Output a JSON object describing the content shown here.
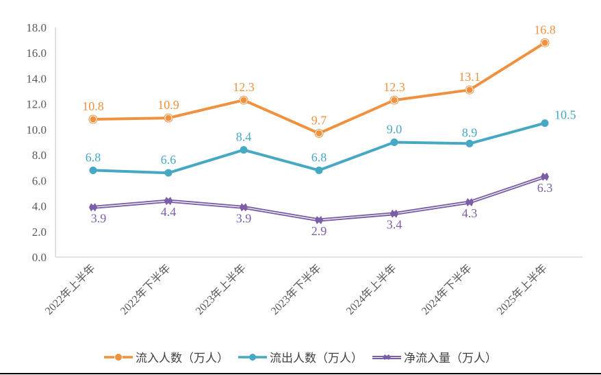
{
  "chart_data": {
    "type": "line",
    "title": "",
    "xlabel": "",
    "ylabel": "",
    "ylim": [
      0,
      18
    ],
    "yticks": [
      "0.0",
      "2.0",
      "4.0",
      "6.0",
      "8.0",
      "10.0",
      "12.0",
      "14.0",
      "16.0",
      "18.0"
    ],
    "ytick_values": [
      0,
      2,
      4,
      6,
      8,
      10,
      12,
      14,
      16,
      18
    ],
    "categories": [
      "2022年上半年",
      "2022年下半年",
      "2023年上半年",
      "2023年下半年",
      "2024年上半年",
      "2024年下半年",
      "2025年上半年"
    ],
    "grid": false,
    "legend_position": "bottom",
    "series": [
      {
        "name": "流入人数（万人）",
        "color": "#F0913F",
        "marker": "double-circle",
        "values": [
          10.8,
          10.9,
          12.3,
          9.7,
          12.3,
          13.1,
          16.8
        ],
        "labels": [
          "10.8",
          "10.9",
          "12.3",
          "9.7",
          "12.3",
          "13.1",
          "16.8"
        ]
      },
      {
        "name": "流出人数（万人）",
        "color": "#47A8C3",
        "marker": "circle",
        "values": [
          6.8,
          6.6,
          8.4,
          6.8,
          9.0,
          8.9,
          10.5
        ],
        "labels": [
          "6.8",
          "6.6",
          "8.4",
          "6.8",
          "9.0",
          "8.9",
          "10.5"
        ]
      },
      {
        "name": "净流入量（万人）",
        "color": "#7B5EA7",
        "marker": "star",
        "values": [
          3.9,
          4.4,
          3.9,
          2.9,
          3.4,
          4.3,
          6.3
        ],
        "labels": [
          "3.9",
          "4.4",
          "3.9",
          "2.9",
          "3.4",
          "4.3",
          "6.3"
        ]
      }
    ]
  }
}
